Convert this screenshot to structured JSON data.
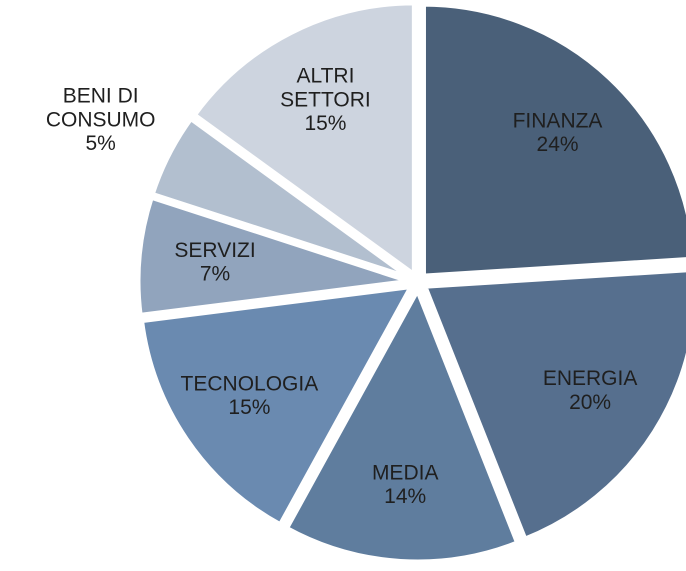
{
  "chart_data": {
    "type": "pie",
    "categories": [
      "FINANZA",
      "ENERGIA",
      "MEDIA",
      "TECNOLOGIA",
      "SERVIZI",
      "BENI DI CONSUMO",
      "ALTRI SETTORI"
    ],
    "values": [
      24,
      20,
      14,
      15,
      7,
      5,
      15
    ],
    "value_labels": [
      "24%",
      "20%",
      "14%",
      "15%",
      "7%",
      "5%",
      "15%"
    ],
    "colors": [
      "#4a6079",
      "#566f8e",
      "#5f7d9e",
      "#6a8ab0",
      "#91a4bd",
      "#b2bfcf",
      "#cdd4df"
    ]
  }
}
